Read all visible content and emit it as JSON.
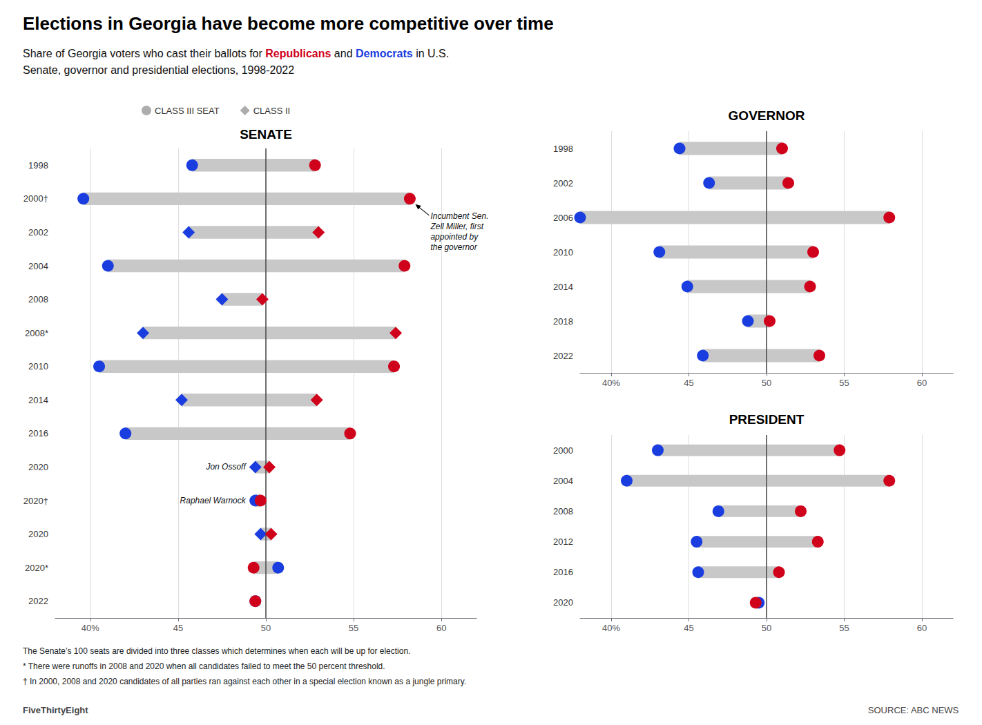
{
  "title": "Elections in Georgia have become more competitive over time",
  "subtitle": "Share of Georgia voters who cast their ballots for Republicans and Democrats in U.S.\nSenate, governor and presidential elections, 1998-2022",
  "footnotes": [
    "The Senate’s 100 seats are divided into three classes which determines when each will be up for election.",
    "* There were runoffs in 2008 and 2020 when all candidates failed to meet the 50 percent threshold.",
    "† In 2000, 2008 and 2020 candidates of all parties ran against each other in a special election known as a jungle primary."
  ],
  "sources": [
    "FiveThirtyEight",
    "SOURCE: ABC NEWS"
  ],
  "chart_data": [
    {
      "type": "dumbbell",
      "title": "SENATE",
      "orientation": "horizontal",
      "categories": [
        "1998",
        "2000†",
        "2002",
        "2004",
        "2008",
        "2008*",
        "2010",
        "2014",
        "2016",
        "2020",
        "2020†",
        "2020",
        "2020*",
        "2022"
      ],
      "markers": [
        "circle",
        "circle",
        "diamond",
        "circle",
        "diamond",
        "diamond",
        "circle",
        "diamond",
        "circle",
        "diamond",
        "circle",
        "diamond",
        "circle",
        "circle"
      ],
      "series": [
        {
          "name": "Democrats",
          "color": "#1a3de0",
          "values": [
            45.8,
            39.6,
            45.6,
            41.0,
            47.5,
            43.0,
            40.5,
            45.2,
            42.0,
            49.4,
            49.4,
            49.7,
            50.7,
            49.4
          ]
        },
        {
          "name": "Republicans",
          "color": "#d0021b",
          "values": [
            52.8,
            58.2,
            53.0,
            57.9,
            49.8,
            57.4,
            57.3,
            52.9,
            54.8,
            50.2,
            49.7,
            50.3,
            49.3,
            49.4
          ]
        }
      ],
      "range_color": "#c8c8c8",
      "reference_line": {
        "value": 50,
        "color": "#444444"
      },
      "xlim": [
        38,
        62
      ],
      "xticks": [
        {
          "value": 40,
          "label": "40%"
        },
        45,
        50,
        55,
        60
      ],
      "grid": true,
      "marker_legend": [
        {
          "label": "CLASS III SEAT",
          "marker": "circle",
          "color": "#999999"
        },
        {
          "label": "CLASS II",
          "marker": "diamond",
          "color": "#999999"
        }
      ],
      "annotations": [
        {
          "text": "Jon Ossoff",
          "category_index": 9,
          "x": 49.4
        },
        {
          "text": "Raphael Warnock",
          "category_index": 10,
          "x": 49.4
        },
        {
          "text": "Incumbent Sen.\nZell Miller, first\nappointed by\nthe governor",
          "category_index": 1,
          "x": 58.2,
          "arrow": true
        }
      ]
    },
    {
      "type": "dumbbell",
      "title": "GOVERNOR",
      "orientation": "horizontal",
      "marker": "circle",
      "categories": [
        "1998",
        "2002",
        "2006",
        "2010",
        "2014",
        "2018",
        "2022"
      ],
      "series": [
        {
          "name": "Democrats",
          "color": "#1a3de0",
          "values": [
            44.4,
            46.3,
            38.0,
            43.1,
            44.9,
            48.8,
            45.9
          ]
        },
        {
          "name": "Republicans",
          "color": "#d0021b",
          "values": [
            51.0,
            51.4,
            57.9,
            53.0,
            52.8,
            50.2,
            53.4
          ]
        }
      ],
      "range_color": "#c8c8c8",
      "reference_line": {
        "value": 50,
        "color": "#444444"
      },
      "xlim": [
        38,
        62
      ],
      "xticks": [
        {
          "value": 40,
          "label": "40%"
        },
        45,
        50,
        55,
        60
      ],
      "grid": true
    },
    {
      "type": "dumbbell",
      "title": "PRESIDENT",
      "orientation": "horizontal",
      "marker": "circle",
      "categories": [
        "2000",
        "2004",
        "2008",
        "2012",
        "2016",
        "2020"
      ],
      "series": [
        {
          "name": "Democrats",
          "color": "#1a3de0",
          "values": [
            43.0,
            41.0,
            46.9,
            45.5,
            45.6,
            49.5
          ]
        },
        {
          "name": "Republicans",
          "color": "#d0021b",
          "values": [
            54.7,
            57.9,
            52.2,
            53.3,
            50.8,
            49.3
          ]
        }
      ],
      "range_color": "#c8c8c8",
      "reference_line": {
        "value": 50,
        "color": "#444444"
      },
      "xlim": [
        38,
        62
      ],
      "xticks": [
        {
          "value": 40,
          "label": "40%"
        },
        45,
        50,
        55,
        60
      ],
      "grid": true
    }
  ]
}
